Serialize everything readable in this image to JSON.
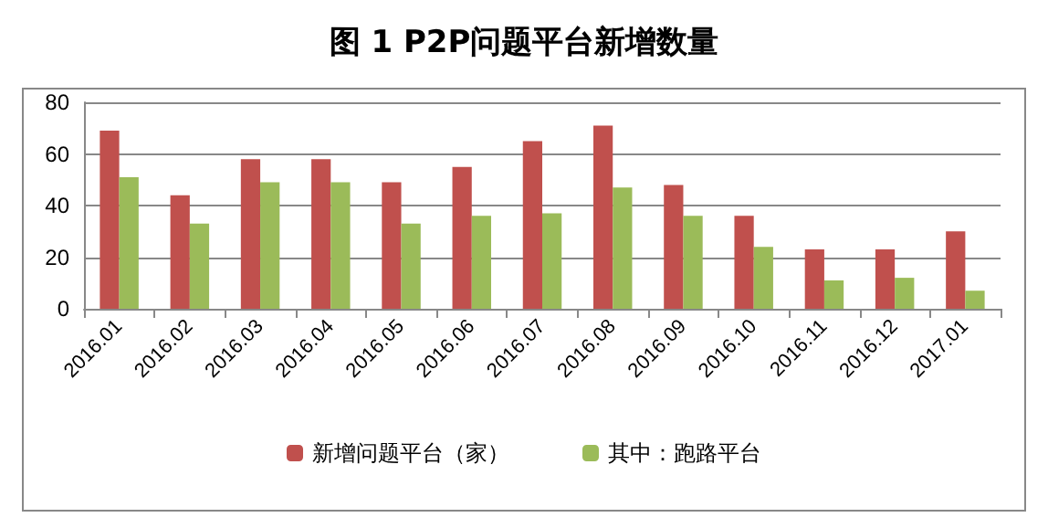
{
  "chart_data": {
    "type": "bar",
    "title": "图 1 P2P问题平台新增数量",
    "categories": [
      "2016.01",
      "2016.02",
      "2016.03",
      "2016.04",
      "2016.05",
      "2016.06",
      "2016.07",
      "2016.08",
      "2016.09",
      "2016.10",
      "2016.11",
      "2016.12",
      "2017.01"
    ],
    "series": [
      {
        "name": "新增问题平台（家）",
        "color": "#c0504d",
        "values": [
          69,
          44,
          58,
          58,
          49,
          55,
          65,
          71,
          48,
          36,
          23,
          23,
          30
        ]
      },
      {
        "name": "其中：跑路平台",
        "color": "#9bbb59",
        "values": [
          51,
          33,
          49,
          49,
          33,
          36,
          37,
          47,
          36,
          24,
          11,
          12,
          7
        ]
      }
    ],
    "ylim": [
      0,
      80
    ],
    "yticks": [
      0,
      20,
      40,
      60,
      80
    ],
    "grid": "y",
    "legend": "bottom"
  }
}
